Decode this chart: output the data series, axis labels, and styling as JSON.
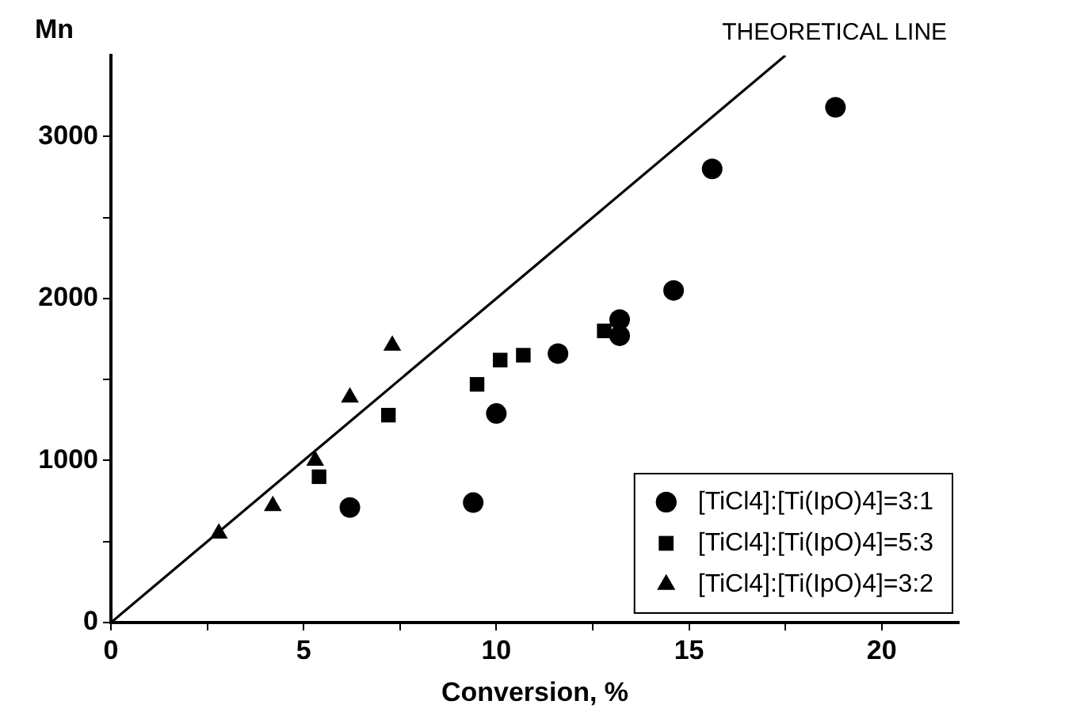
{
  "chart_data": {
    "type": "scatter",
    "xlabel": "Conversion, %",
    "ylabel": "Mn",
    "xlim": [
      0,
      22
    ],
    "xticks": [
      0,
      {
        "value": 2.5,
        "label": null
      },
      5,
      {
        "value": 7.5,
        "label": null
      },
      10,
      {
        "value": 12.5,
        "label": null
      },
      15,
      {
        "value": 17.5,
        "label": null
      },
      20
    ],
    "ylim": [
      0,
      3500
    ],
    "yticks": [
      0,
      {
        "value": 500,
        "label": null
      },
      1000,
      {
        "value": 1500,
        "label": null
      },
      2000,
      {
        "value": 2500,
        "label": null
      },
      3000
    ],
    "grid": false,
    "legend": "bottom right",
    "annotations": [
      {
        "text": "THEORETICAL LINE",
        "x": 17.5,
        "y": 3500
      }
    ],
    "series": [
      {
        "name": "[TiCl4]:[Ti(IpO)4]=3:1",
        "color": "#000000",
        "marker": "circle",
        "x": [
          6.2,
          9.4,
          10.0,
          11.6,
          13.2,
          13.2,
          14.6,
          15.6,
          18.8
        ],
        "values": [
          710,
          740,
          1290,
          1660,
          1870,
          1770,
          2050,
          2800,
          3180
        ]
      },
      {
        "name": "[TiCl4]:[Ti(IpO)4]=5:3",
        "color": "#000000",
        "marker": "square",
        "x": [
          5.4,
          7.2,
          9.5,
          10.1,
          10.7,
          12.8
        ],
        "values": [
          900,
          1280,
          1470,
          1620,
          1650,
          1800
        ]
      },
      {
        "name": "[TiCl4]:[Ti(IpO)4]=3:2",
        "color": "#000000",
        "marker": "triangle",
        "x": [
          2.8,
          4.2,
          5.3,
          6.2,
          7.3
        ],
        "values": [
          550,
          720,
          1000,
          1390,
          1710
        ]
      },
      {
        "type": "line",
        "color": "#000000",
        "marker": "none",
        "x": [
          0,
          17.5
        ],
        "values": [
          0,
          3500
        ]
      }
    ]
  }
}
